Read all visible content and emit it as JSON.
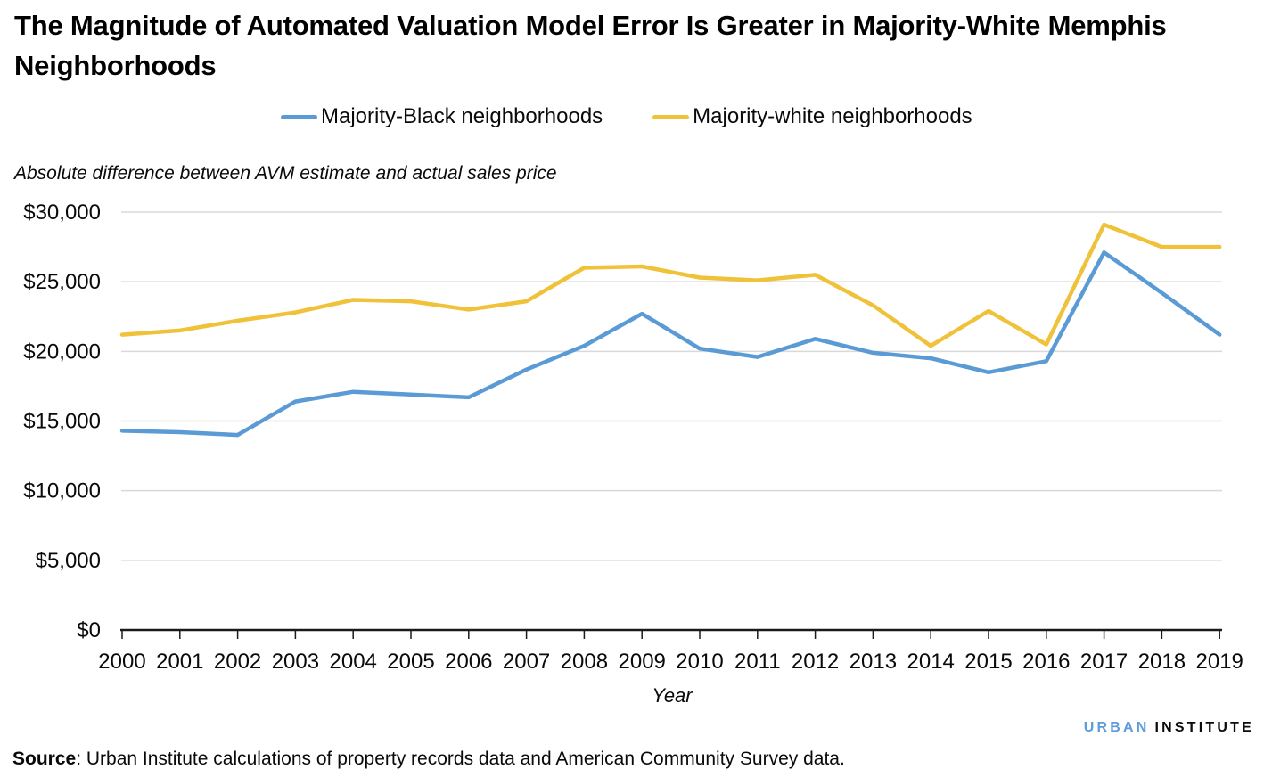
{
  "title": "The Magnitude of Automated Valuation Model Error Is Greater in Majority-White Memphis Neighborhoods",
  "subtitle": "Absolute difference between AVM estimate and actual sales price",
  "chart_data": {
    "type": "line",
    "x": [
      2000,
      2001,
      2002,
      2003,
      2004,
      2005,
      2006,
      2007,
      2008,
      2009,
      2010,
      2011,
      2012,
      2013,
      2014,
      2015,
      2016,
      2017,
      2018,
      2019
    ],
    "series": [
      {
        "name": "Majority-Black neighborhoods",
        "color": "#5B9BD5",
        "values": [
          14300,
          14200,
          14000,
          16400,
          17100,
          16900,
          16700,
          18700,
          20400,
          22700,
          20200,
          19600,
          20900,
          19900,
          19500,
          18500,
          19300,
          27100,
          24200,
          21200
        ]
      },
      {
        "name": "Majority-white neighborhoods",
        "color": "#F0C239",
        "values": [
          21200,
          21500,
          22200,
          22800,
          23700,
          23600,
          23000,
          23600,
          26000,
          26100,
          25300,
          25100,
          25500,
          23300,
          20400,
          22900,
          20500,
          29100,
          27500,
          27500
        ]
      }
    ],
    "xlabel": "Year",
    "ylim": [
      0,
      30000
    ],
    "ytick_step": 5000,
    "ytick_labels": [
      "$0",
      "$5,000",
      "$10,000",
      "$15,000",
      "$20,000",
      "$25,000",
      "$30,000"
    ],
    "grid": true,
    "legend_position": "top",
    "gridline_color": "#D9D9D9",
    "axis_color": "#1a1a1a"
  },
  "footer": {
    "logo_urban": "URBAN",
    "logo_institute": "INSTITUTE",
    "logo_urban_color": "#5C9CD9",
    "source_label": "Source",
    "source_text": ": Urban Institute calculations of property records data and American Community Survey data."
  }
}
